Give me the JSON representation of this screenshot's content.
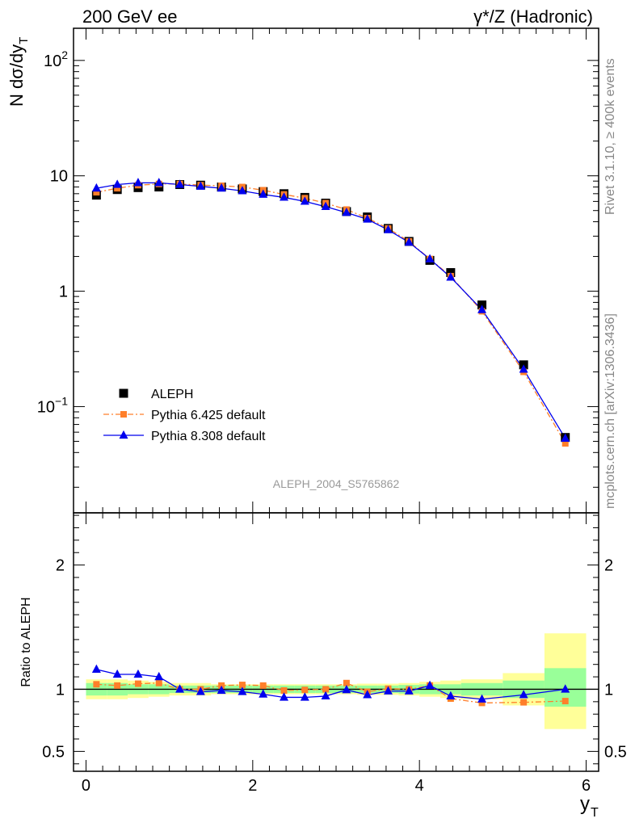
{
  "header": {
    "left": "200 GeV ee",
    "right": "γ*/Z (Hadronic)"
  },
  "side_text": {
    "rivet": "Rivet 3.1.10, ≥ 400k events",
    "mcplots": "mcplots.cern.ch [arXiv:1306.3436]"
  },
  "watermark": "ALEPH_2004_S5765862",
  "colors": {
    "data": "#000000",
    "pythia6": "#ff7f2a",
    "pythia8": "#0000ee",
    "band_inner": "#99ff99",
    "band_outer": "#ffff99",
    "watermark": "#999999"
  },
  "chart_data": [
    {
      "type": "scatter",
      "yscale": "log",
      "ylabel": "N dσ/dy",
      "ylabel_sub": "T",
      "xlim": [
        -0.15,
        6.15
      ],
      "ylim": [
        0.012,
        190
      ],
      "yticks": [
        {
          "value": 0.1,
          "base": "10",
          "exp": "−1"
        },
        {
          "value": 1,
          "base": "1",
          "exp": ""
        },
        {
          "value": 10,
          "base": "10",
          "exp": ""
        },
        {
          "value": 100,
          "base": "10",
          "exp": "2"
        }
      ],
      "legend": [
        {
          "label": "ALEPH",
          "series": "aleph"
        },
        {
          "label": "Pythia 6.425 default",
          "series": "pythia6"
        },
        {
          "label": "Pythia 8.308 default",
          "series": "pythia8"
        }
      ],
      "legend_position": "lower-left",
      "series": [
        {
          "name": "ALEPH",
          "id": "aleph",
          "x": [
            0.125,
            0.375,
            0.625,
            0.875,
            1.125,
            1.375,
            1.625,
            1.875,
            2.125,
            2.375,
            2.625,
            2.875,
            3.125,
            3.375,
            3.625,
            3.875,
            4.125,
            4.375,
            4.75,
            5.25,
            5.75
          ],
          "y": [
            6.8,
            7.6,
            7.9,
            8.0,
            8.4,
            8.3,
            8.0,
            7.7,
            7.3,
            7.0,
            6.5,
            5.8,
            4.9,
            4.4,
            3.5,
            2.7,
            1.85,
            1.45,
            0.76,
            0.23,
            0.054
          ]
        },
        {
          "name": "Pythia 6.425 default",
          "id": "pythia6",
          "x": [
            0.125,
            0.375,
            0.625,
            0.875,
            1.125,
            1.375,
            1.625,
            1.875,
            2.125,
            2.375,
            2.625,
            2.875,
            3.125,
            3.375,
            3.625,
            3.875,
            4.125,
            4.375,
            4.75,
            5.25,
            5.75
          ],
          "y": [
            7.2,
            7.8,
            8.3,
            8.5,
            8.5,
            8.3,
            8.2,
            8.0,
            7.5,
            6.9,
            6.4,
            5.8,
            5.1,
            4.3,
            3.5,
            2.7,
            1.9,
            1.35,
            0.67,
            0.2,
            0.048
          ]
        },
        {
          "name": "Pythia 8.308 default",
          "id": "pythia8",
          "x": [
            0.125,
            0.375,
            0.625,
            0.875,
            1.125,
            1.375,
            1.625,
            1.875,
            2.125,
            2.375,
            2.625,
            2.875,
            3.125,
            3.375,
            3.625,
            3.875,
            4.125,
            4.375,
            4.75,
            5.25,
            5.75
          ],
          "y": [
            7.8,
            8.4,
            8.7,
            8.7,
            8.4,
            8.1,
            7.8,
            7.4,
            6.9,
            6.5,
            6.0,
            5.4,
            4.8,
            4.2,
            3.4,
            2.65,
            1.9,
            1.32,
            0.69,
            0.21,
            0.053
          ]
        }
      ]
    },
    {
      "type": "scatter",
      "ylabel": "Ratio to ALEPH",
      "xlabel": "y",
      "xlabel_sub": "T",
      "xlim": [
        -0.15,
        6.15
      ],
      "ylim": [
        0.34,
        2.42
      ],
      "xticks": [
        0,
        2,
        4,
        6
      ],
      "yticks": [
        0.5,
        1,
        2
      ],
      "reference_line": 1,
      "bands": [
        {
          "x0": 0.0,
          "x1": 0.25,
          "inner": [
            0.95,
            1.05
          ],
          "outer": [
            0.92,
            1.08
          ]
        },
        {
          "x0": 0.25,
          "x1": 0.5,
          "inner": [
            0.95,
            1.05
          ],
          "outer": [
            0.92,
            1.08
          ]
        },
        {
          "x0": 0.5,
          "x1": 0.75,
          "inner": [
            0.96,
            1.04
          ],
          "outer": [
            0.93,
            1.07
          ]
        },
        {
          "x0": 0.75,
          "x1": 1.0,
          "inner": [
            0.96,
            1.04
          ],
          "outer": [
            0.94,
            1.06
          ]
        },
        {
          "x0": 1.0,
          "x1": 1.25,
          "inner": [
            0.97,
            1.03
          ],
          "outer": [
            0.95,
            1.05
          ]
        },
        {
          "x0": 1.25,
          "x1": 1.5,
          "inner": [
            0.97,
            1.03
          ],
          "outer": [
            0.95,
            1.05
          ]
        },
        {
          "x0": 1.5,
          "x1": 1.75,
          "inner": [
            0.97,
            1.03
          ],
          "outer": [
            0.96,
            1.04
          ]
        },
        {
          "x0": 1.75,
          "x1": 2.0,
          "inner": [
            0.97,
            1.03
          ],
          "outer": [
            0.96,
            1.04
          ]
        },
        {
          "x0": 2.0,
          "x1": 2.25,
          "inner": [
            0.97,
            1.03
          ],
          "outer": [
            0.96,
            1.04
          ]
        },
        {
          "x0": 2.25,
          "x1": 2.5,
          "inner": [
            0.97,
            1.03
          ],
          "outer": [
            0.96,
            1.04
          ]
        },
        {
          "x0": 2.5,
          "x1": 2.75,
          "inner": [
            0.97,
            1.03
          ],
          "outer": [
            0.96,
            1.04
          ]
        },
        {
          "x0": 2.75,
          "x1": 3.0,
          "inner": [
            0.97,
            1.03
          ],
          "outer": [
            0.96,
            1.04
          ]
        },
        {
          "x0": 3.0,
          "x1": 3.25,
          "inner": [
            0.97,
            1.03
          ],
          "outer": [
            0.96,
            1.04
          ]
        },
        {
          "x0": 3.25,
          "x1": 3.5,
          "inner": [
            0.97,
            1.03
          ],
          "outer": [
            0.955,
            1.045
          ]
        },
        {
          "x0": 3.5,
          "x1": 3.75,
          "inner": [
            0.97,
            1.03
          ],
          "outer": [
            0.955,
            1.045
          ]
        },
        {
          "x0": 3.75,
          "x1": 4.0,
          "inner": [
            0.965,
            1.035
          ],
          "outer": [
            0.95,
            1.05
          ]
        },
        {
          "x0": 4.0,
          "x1": 4.25,
          "inner": [
            0.96,
            1.04
          ],
          "outer": [
            0.94,
            1.06
          ]
        },
        {
          "x0": 4.25,
          "x1": 4.5,
          "inner": [
            0.96,
            1.04
          ],
          "outer": [
            0.93,
            1.07
          ]
        },
        {
          "x0": 4.5,
          "x1": 5.0,
          "inner": [
            0.95,
            1.05
          ],
          "outer": [
            0.92,
            1.08
          ]
        },
        {
          "x0": 5.0,
          "x1": 5.5,
          "inner": [
            0.93,
            1.07
          ],
          "outer": [
            0.87,
            1.13
          ]
        },
        {
          "x0": 5.5,
          "x1": 6.0,
          "inner": [
            0.86,
            1.17
          ],
          "outer": [
            0.68,
            1.45
          ]
        }
      ],
      "series": [
        {
          "name": "Pythia 6.425 default",
          "id": "pythia6",
          "x": [
            0.125,
            0.375,
            0.625,
            0.875,
            1.125,
            1.375,
            1.625,
            1.875,
            2.125,
            2.375,
            2.625,
            2.875,
            3.125,
            3.375,
            3.625,
            3.875,
            4.125,
            4.375,
            4.75,
            5.25,
            5.75
          ],
          "y": [
            1.04,
            1.03,
            1.045,
            1.05,
            1.0,
            1.0,
            1.03,
            1.035,
            1.03,
            0.99,
            0.995,
            1.0,
            1.05,
            0.98,
            1.005,
            1.0,
            1.03,
            0.925,
            0.89,
            0.895,
            0.905
          ]
        },
        {
          "name": "Pythia 8.308 default",
          "id": "pythia8",
          "x": [
            0.125,
            0.375,
            0.625,
            0.875,
            1.125,
            1.375,
            1.625,
            1.875,
            2.125,
            2.375,
            2.625,
            2.875,
            3.125,
            3.375,
            3.625,
            3.875,
            4.125,
            4.375,
            4.75,
            5.25,
            5.75
          ],
          "y": [
            1.16,
            1.12,
            1.12,
            1.1,
            1.0,
            0.98,
            0.99,
            0.98,
            0.96,
            0.935,
            0.935,
            0.945,
            0.995,
            0.955,
            0.985,
            0.985,
            1.03,
            0.945,
            0.92,
            0.955,
            1.0
          ]
        }
      ]
    }
  ]
}
